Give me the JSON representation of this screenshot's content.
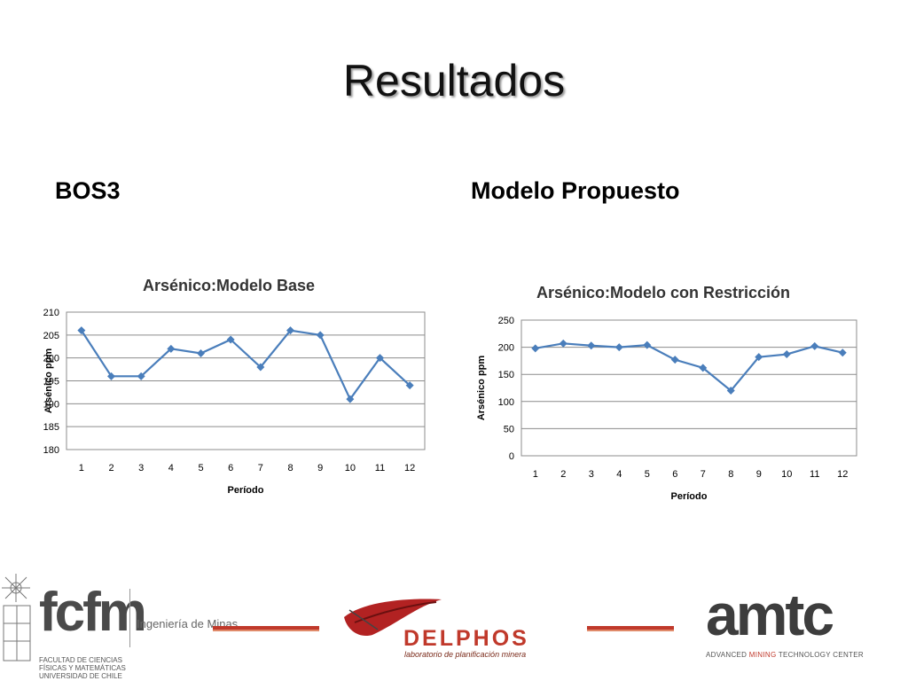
{
  "slide": {
    "title": "Resultados",
    "left_heading": "BOS3",
    "right_heading": "Modelo Propuesto"
  },
  "colors": {
    "series": "#4a7ebb",
    "accent": "#c0392b"
  },
  "chart_data": [
    {
      "type": "line",
      "title": "Arsénico:Modelo Base",
      "xlabel": "Período",
      "ylabel": "Arsénico ppm",
      "categories": [
        "1",
        "2",
        "3",
        "4",
        "5",
        "6",
        "7",
        "8",
        "9",
        "10",
        "11",
        "12"
      ],
      "series": [
        {
          "values": [
            206,
            196,
            196,
            202,
            201,
            204,
            198,
            206,
            205,
            191,
            200,
            194
          ]
        }
      ],
      "ylim": [
        180,
        210
      ],
      "yticks": [
        180,
        185,
        190,
        195,
        200,
        205,
        210
      ],
      "grid": true,
      "legend": "none",
      "marker": "diamond"
    },
    {
      "type": "line",
      "title": "Arsénico:Modelo con Restricción",
      "xlabel": "Período",
      "ylabel": "Arsénico ppm",
      "categories": [
        "1",
        "2",
        "3",
        "4",
        "5",
        "6",
        "7",
        "8",
        "9",
        "10",
        "11",
        "12"
      ],
      "series": [
        {
          "values": [
            198,
            207,
            203,
            200,
            204,
            177,
            162,
            120,
            182,
            187,
            202,
            190
          ]
        }
      ],
      "ylim": [
        0,
        250
      ],
      "yticks": [
        0,
        50,
        100,
        150,
        200,
        250
      ],
      "grid": true,
      "legend": "none",
      "marker": "diamond"
    }
  ],
  "footer": {
    "fcfm": {
      "wordmark": "fcfm",
      "department": "Ingeniería de Minas",
      "institution": "FACULTAD DE CIENCIAS FÍSICAS Y MATEMÁTICAS UNIVERSIDAD DE CHILE"
    },
    "delphos": {
      "wordmark": "DELPHOS",
      "tagline": "laboratorio de planificación minera"
    },
    "amtc": {
      "wordmark": "amtc",
      "tagline_pre": "ADVANCED ",
      "tagline_mid": "MINING",
      "tagline_post": " TECHNOLOGY CENTER"
    }
  }
}
